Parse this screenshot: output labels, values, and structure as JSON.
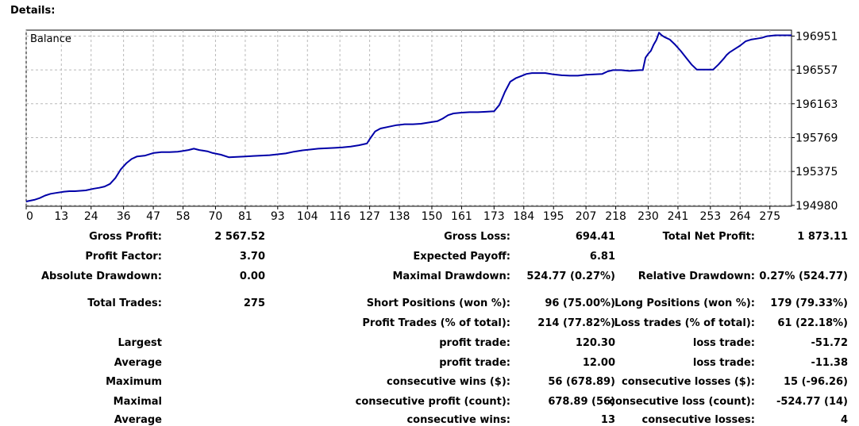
{
  "header": {
    "title": "Details:"
  },
  "chart_data": {
    "type": "line",
    "title": "Balance",
    "xlabel": "",
    "ylabel": "",
    "x_ticks": [
      "0",
      "13",
      "24",
      "36",
      "47",
      "58",
      "70",
      "81",
      "93",
      "104",
      "116",
      "127",
      "138",
      "150",
      "161",
      "173",
      "184",
      "195",
      "207",
      "218",
      "230",
      "241",
      "253",
      "264",
      "275"
    ],
    "y_ticks": [
      "196951",
      "196557",
      "196163",
      "195769",
      "195375",
      "194980"
    ],
    "xlim": [
      0,
      283
    ],
    "ylim": [
      194970,
      197020
    ],
    "grid": true,
    "line_color": "#0000a8",
    "series": [
      {
        "x": [
          0,
          3,
          5,
          7,
          9,
          11,
          14,
          16,
          18,
          20,
          22,
          25,
          27,
          29,
          31,
          33,
          35,
          37,
          39,
          41,
          44,
          47,
          50,
          53,
          56,
          58,
          60,
          62,
          64,
          67,
          69,
          72,
          75,
          78,
          81,
          84,
          87,
          90,
          93,
          96,
          99,
          102,
          105,
          108,
          111,
          114,
          117,
          120,
          123,
          126,
          127,
          129,
          131,
          134,
          137,
          140,
          143,
          146,
          149,
          152,
          154,
          156,
          158,
          161,
          164,
          167,
          170,
          173,
          175,
          177,
          179,
          181,
          183,
          185,
          187,
          189,
          192,
          195,
          198,
          201,
          204,
          207,
          210,
          213,
          215,
          217,
          220,
          223,
          225,
          227,
          228,
          229,
          230,
          231,
          232,
          233,
          234,
          235,
          236,
          238,
          240,
          242,
          244,
          246,
          248,
          250,
          252,
          254,
          256,
          258,
          259,
          260,
          262,
          264,
          266,
          268,
          270,
          272,
          274,
          277,
          280,
          283
        ],
        "y": [
          195025,
          195045,
          195065,
          195095,
          195115,
          195125,
          195140,
          195145,
          195145,
          195150,
          195155,
          195175,
          195185,
          195200,
          195230,
          195300,
          195400,
          195470,
          195520,
          195550,
          195560,
          195590,
          195600,
          195600,
          195605,
          195615,
          195625,
          195640,
          195625,
          195610,
          195590,
          195570,
          195540,
          195545,
          195550,
          195555,
          195560,
          195565,
          195575,
          195585,
          195605,
          195620,
          195630,
          195640,
          195645,
          195650,
          195655,
          195665,
          195680,
          195700,
          195750,
          195840,
          195875,
          195895,
          195915,
          195925,
          195925,
          195930,
          195945,
          195960,
          195990,
          196030,
          196050,
          196060,
          196065,
          196065,
          196070,
          196075,
          196150,
          196300,
          196420,
          196460,
          196485,
          196510,
          196520,
          196520,
          196520,
          196505,
          196495,
          196490,
          196490,
          196500,
          196505,
          196510,
          196540,
          196555,
          196555,
          196545,
          196550,
          196555,
          196555,
          196700,
          196745,
          196780,
          196850,
          196905,
          196990,
          196960,
          196940,
          196910,
          196850,
          196780,
          196700,
          196620,
          196560,
          196560,
          196560,
          196560,
          196620,
          196690,
          196730,
          196760,
          196800,
          196840,
          196890,
          196910,
          196920,
          196930,
          196950,
          196960,
          196960,
          196960
        ]
      }
    ]
  },
  "stats": [
    {
      "label": "Gross Profit:",
      "value": "2 567.52"
    },
    {
      "label": "Gross Loss:",
      "value": "694.41"
    },
    {
      "label": "Total Net Profit:",
      "value": "1 873.11"
    },
    {
      "label": "Profit Factor:",
      "value": "3.70"
    },
    {
      "label": "Expected Payoff:",
      "value": "6.81"
    },
    {
      "label": "Absolute Drawdown:",
      "value": "0.00"
    },
    {
      "label": "Maximal Drawdown:",
      "value": "524.77 (0.27%)"
    },
    {
      "label": "Relative Drawdown:",
      "value": "0.27% (524.77)"
    },
    {
      "label": "Total Trades:",
      "value": "275"
    },
    {
      "label": "Short Positions (won %):",
      "value": "96 (75.00%)"
    },
    {
      "label": "Long Positions (won %):",
      "value": "179 (79.33%)"
    },
    {
      "label": "Profit Trades (% of total):",
      "value": "214 (77.82%)"
    },
    {
      "label": "Loss trades (% of total):",
      "value": "61 (22.18%)"
    },
    {
      "label": "Largest",
      "value": ""
    },
    {
      "label": "profit trade:",
      "value": "120.30"
    },
    {
      "label": "loss trade:",
      "value": "-51.72"
    },
    {
      "label": "Average",
      "value": ""
    },
    {
      "label": "profit trade:",
      "value": "12.00"
    },
    {
      "label": "loss trade:",
      "value": "-11.38"
    },
    {
      "label": "Maximum",
      "value": ""
    },
    {
      "label": "consecutive wins ($):",
      "value": "56 (678.89)"
    },
    {
      "label": "consecutive losses ($):",
      "value": "15 (-96.26)"
    },
    {
      "label": "Maximal",
      "value": ""
    },
    {
      "label": "consecutive profit (count):",
      "value": "678.89 (56)"
    },
    {
      "label": "consecutive loss (count):",
      "value": "-524.77 (14)"
    },
    {
      "label": "Average",
      "value": ""
    },
    {
      "label": "consecutive wins:",
      "value": "13"
    },
    {
      "label": "consecutive losses:",
      "value": "4"
    }
  ]
}
